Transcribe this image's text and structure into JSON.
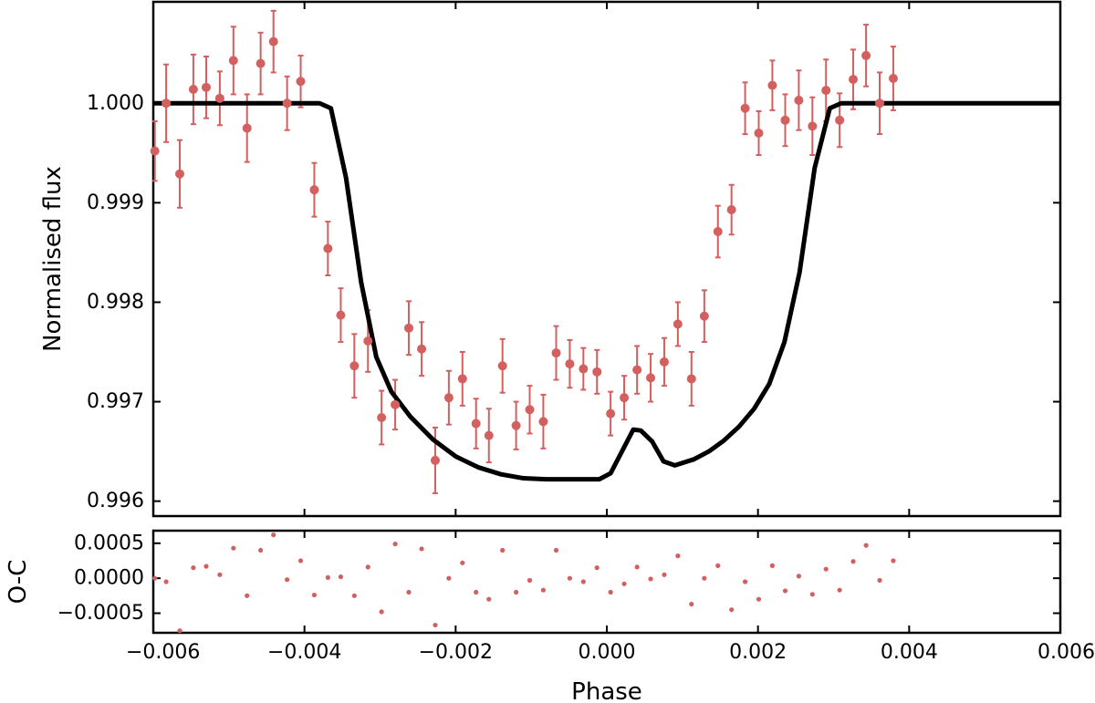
{
  "chart_data": [
    {
      "type": "scatter",
      "panel": "top",
      "ylabel": "Normalised flux",
      "xlim": [
        -0.006,
        0.006
      ],
      "ylim": [
        0.99585,
        1.00102
      ],
      "y_ticks": [
        0.996,
        0.997,
        0.998,
        0.999,
        1.0
      ],
      "y_tick_labels": [
        "0.996",
        "0.997",
        "0.998",
        "0.999",
        "1.000"
      ],
      "grid": false,
      "series": [
        {
          "type": "errorbar",
          "color": "#d45f5f",
          "points": [
            {
              "x": -0.00598,
              "y": 0.99952,
              "err": 0.0003
            },
            {
              "x": -0.00583,
              "y": 1.0,
              "err": 0.00039
            },
            {
              "x": -0.00565,
              "y": 0.99929,
              "err": 0.00034
            },
            {
              "x": -0.00547,
              "y": 1.00014,
              "err": 0.00035
            },
            {
              "x": -0.0053,
              "y": 1.00016,
              "err": 0.00031
            },
            {
              "x": -0.00512,
              "y": 1.00005,
              "err": 0.00027
            },
            {
              "x": -0.00494,
              "y": 1.00043,
              "err": 0.00034
            },
            {
              "x": -0.00476,
              "y": 0.99975,
              "err": 0.00034
            },
            {
              "x": -0.00458,
              "y": 1.0004,
              "err": 0.00031
            },
            {
              "x": -0.00441,
              "y": 1.00062,
              "err": 0.00031
            },
            {
              "x": -0.00423,
              "y": 1.0,
              "err": 0.00027
            },
            {
              "x": -0.00405,
              "y": 1.00022,
              "err": 0.00026
            },
            {
              "x": -0.00387,
              "y": 0.99913,
              "err": 0.00027
            },
            {
              "x": -0.00369,
              "y": 0.99854,
              "err": 0.00027
            },
            {
              "x": -0.00352,
              "y": 0.99787,
              "err": 0.00027
            },
            {
              "x": -0.00334,
              "y": 0.99736,
              "err": 0.00032
            },
            {
              "x": -0.00316,
              "y": 0.99761,
              "err": 0.00031
            },
            {
              "x": -0.00298,
              "y": 0.99684,
              "err": 0.00027
            },
            {
              "x": -0.0028,
              "y": 0.99697,
              "err": 0.00025
            },
            {
              "x": -0.00262,
              "y": 0.99774,
              "err": 0.00027
            },
            {
              "x": -0.00245,
              "y": 0.99753,
              "err": 0.00027
            },
            {
              "x": -0.00227,
              "y": 0.99641,
              "err": 0.00033
            },
            {
              "x": -0.00209,
              "y": 0.99704,
              "err": 0.00027
            },
            {
              "x": -0.00191,
              "y": 0.99723,
              "err": 0.00027
            },
            {
              "x": -0.00173,
              "y": 0.99678,
              "err": 0.00025
            },
            {
              "x": -0.00156,
              "y": 0.99666,
              "err": 0.00027
            },
            {
              "x": -0.00138,
              "y": 0.99736,
              "err": 0.00027
            },
            {
              "x": -0.0012,
              "y": 0.99676,
              "err": 0.00024
            },
            {
              "x": -0.00102,
              "y": 0.99692,
              "err": 0.00024
            },
            {
              "x": -0.00084,
              "y": 0.9968,
              "err": 0.00027
            },
            {
              "x": -0.00067,
              "y": 0.99749,
              "err": 0.00027
            },
            {
              "x": -0.00049,
              "y": 0.99738,
              "err": 0.00024
            },
            {
              "x": -0.00031,
              "y": 0.99733,
              "err": 0.00021
            },
            {
              "x": -0.00013,
              "y": 0.9973,
              "err": 0.00022
            },
            {
              "x": 5e-05,
              "y": 0.99688,
              "err": 0.00022
            },
            {
              "x": 0.00023,
              "y": 0.99704,
              "err": 0.00022
            },
            {
              "x": 0.0004,
              "y": 0.99732,
              "err": 0.00024
            },
            {
              "x": 0.00058,
              "y": 0.99724,
              "err": 0.00024
            },
            {
              "x": 0.00076,
              "y": 0.9974,
              "err": 0.00024
            },
            {
              "x": 0.00094,
              "y": 0.99778,
              "err": 0.00022
            },
            {
              "x": 0.00112,
              "y": 0.99723,
              "err": 0.00027
            },
            {
              "x": 0.00129,
              "y": 0.99786,
              "err": 0.00026
            },
            {
              "x": 0.00147,
              "y": 0.99871,
              "err": 0.00026
            },
            {
              "x": 0.00165,
              "y": 0.99893,
              "err": 0.00025
            },
            {
              "x": 0.00183,
              "y": 0.99995,
              "err": 0.00026
            },
            {
              "x": 0.00201,
              "y": 0.9997,
              "err": 0.00022
            },
            {
              "x": 0.00219,
              "y": 1.00018,
              "err": 0.00025
            },
            {
              "x": 0.00236,
              "y": 0.99983,
              "err": 0.00026
            },
            {
              "x": 0.00254,
              "y": 1.00003,
              "err": 0.0003
            },
            {
              "x": 0.00272,
              "y": 0.99977,
              "err": 0.00029
            },
            {
              "x": 0.0029,
              "y": 1.00013,
              "err": 0.00031
            },
            {
              "x": 0.00308,
              "y": 0.99983,
              "err": 0.00027
            },
            {
              "x": 0.00326,
              "y": 1.00024,
              "err": 0.0003
            },
            {
              "x": 0.00343,
              "y": 1.00048,
              "err": 0.00031
            },
            {
              "x": 0.00361,
              "y": 1.0,
              "err": 0.00031
            },
            {
              "x": 0.00379,
              "y": 1.00025,
              "err": 0.00032
            }
          ]
        },
        {
          "type": "model-line",
          "color": "#000000",
          "points": [
            [
              -0.006,
              1.0
            ],
            [
              -0.0038,
              1.0
            ],
            [
              -0.00365,
              0.99995
            ],
            [
              -0.00345,
              0.99925
            ],
            [
              -0.00325,
              0.9982
            ],
            [
              -0.00305,
              0.99745
            ],
            [
              -0.00285,
              0.9971
            ],
            [
              -0.0026,
              0.99685
            ],
            [
              -0.0023,
              0.99662
            ],
            [
              -0.002,
              0.99645
            ],
            [
              -0.0017,
              0.99634
            ],
            [
              -0.0014,
              0.99627
            ],
            [
              -0.0011,
              0.99623
            ],
            [
              -0.0008,
              0.99622
            ],
            [
              -0.0004,
              0.99622
            ],
            [
              -0.0001,
              0.99622
            ],
            [
              5e-05,
              0.99628
            ],
            [
              0.0002,
              0.9965
            ],
            [
              0.00035,
              0.99672
            ],
            [
              0.00045,
              0.99671
            ],
            [
              0.0006,
              0.9966
            ],
            [
              0.00075,
              0.9964
            ],
            [
              0.0009,
              0.99636
            ],
            [
              0.00115,
              0.99642
            ],
            [
              0.00135,
              0.9965
            ],
            [
              0.00155,
              0.99661
            ],
            [
              0.00175,
              0.99675
            ],
            [
              0.00195,
              0.99693
            ],
            [
              0.00215,
              0.99718
            ],
            [
              0.00235,
              0.9976
            ],
            [
              0.00255,
              0.9983
            ],
            [
              0.00275,
              0.99935
            ],
            [
              0.00295,
              0.99995
            ],
            [
              0.0031,
              1.0
            ],
            [
              0.006,
              1.0
            ]
          ]
        }
      ]
    },
    {
      "type": "scatter",
      "panel": "bottom",
      "xlabel": "Phase",
      "ylabel": "O-C",
      "xlim": [
        -0.006,
        0.006
      ],
      "ylim": [
        -0.00078,
        0.00068
      ],
      "x_ticks": [
        -0.006,
        -0.004,
        -0.002,
        0.0,
        0.002,
        0.004,
        0.006
      ],
      "x_tick_labels": [
        "−0.006",
        "−0.004",
        "−0.002",
        "0.000",
        "0.002",
        "0.004",
        "0.006"
      ],
      "y_ticks": [
        -0.0005,
        0.0,
        0.0005
      ],
      "y_tick_labels": [
        "−0.0005",
        "0.0000",
        "0.0005"
      ],
      "grid": false,
      "series": [
        {
          "type": "residuals",
          "color": "#d45f5f",
          "points": [
            [
              -0.00598,
              0.0
            ],
            [
              -0.00583,
              -5e-05
            ],
            [
              -0.00565,
              -0.00075
            ],
            [
              -0.00547,
              0.00015
            ],
            [
              -0.0053,
              0.00017
            ],
            [
              -0.00512,
              5e-05
            ],
            [
              -0.00494,
              0.00043
            ],
            [
              -0.00476,
              -0.00025
            ],
            [
              -0.00458,
              0.0004
            ],
            [
              -0.00441,
              0.00062
            ],
            [
              -0.00423,
              -2e-05
            ],
            [
              -0.00405,
              0.00025
            ],
            [
              -0.00387,
              -0.00024
            ],
            [
              -0.00369,
              1e-05
            ],
            [
              -0.00352,
              2e-05
            ],
            [
              -0.00334,
              -0.00025
            ],
            [
              -0.00316,
              0.00016
            ],
            [
              -0.00298,
              -0.00048
            ],
            [
              -0.0028,
              0.00049
            ],
            [
              -0.00262,
              -0.0002
            ],
            [
              -0.00245,
              0.00042
            ],
            [
              -0.00227,
              -0.00067
            ],
            [
              -0.00209,
              0.0
            ],
            [
              -0.00191,
              0.00022
            ],
            [
              -0.00173,
              -0.0002
            ],
            [
              -0.00156,
              -0.0003
            ],
            [
              -0.00138,
              0.0004
            ],
            [
              -0.0012,
              -0.0002
            ],
            [
              -0.00102,
              -3e-05
            ],
            [
              -0.00084,
              -0.00017
            ],
            [
              -0.00067,
              0.0004
            ],
            [
              -0.00049,
              0.0
            ],
            [
              -0.00031,
              -5e-05
            ],
            [
              -0.00013,
              0.00015
            ],
            [
              5e-05,
              -0.0002
            ],
            [
              0.00023,
              -8e-05
            ],
            [
              0.0004,
              0.00016
            ],
            [
              0.00058,
              -1e-05
            ],
            [
              0.00076,
              5e-05
            ],
            [
              0.00094,
              0.00032
            ],
            [
              0.00112,
              -0.00037
            ],
            [
              0.00129,
              0.0
            ],
            [
              0.00147,
              0.00018
            ],
            [
              0.00165,
              -0.00045
            ],
            [
              0.00183,
              -5e-05
            ],
            [
              0.00201,
              -0.0003
            ],
            [
              0.00219,
              0.00018
            ],
            [
              0.00236,
              -0.00018
            ],
            [
              0.00254,
              3e-05
            ],
            [
              0.00272,
              -0.00023
            ],
            [
              0.0029,
              0.00013
            ],
            [
              0.00308,
              -0.00017
            ],
            [
              0.00326,
              0.00024
            ],
            [
              0.00343,
              0.00047
            ],
            [
              0.00361,
              -3e-05
            ],
            [
              0.00379,
              0.00025
            ]
          ]
        }
      ]
    }
  ]
}
